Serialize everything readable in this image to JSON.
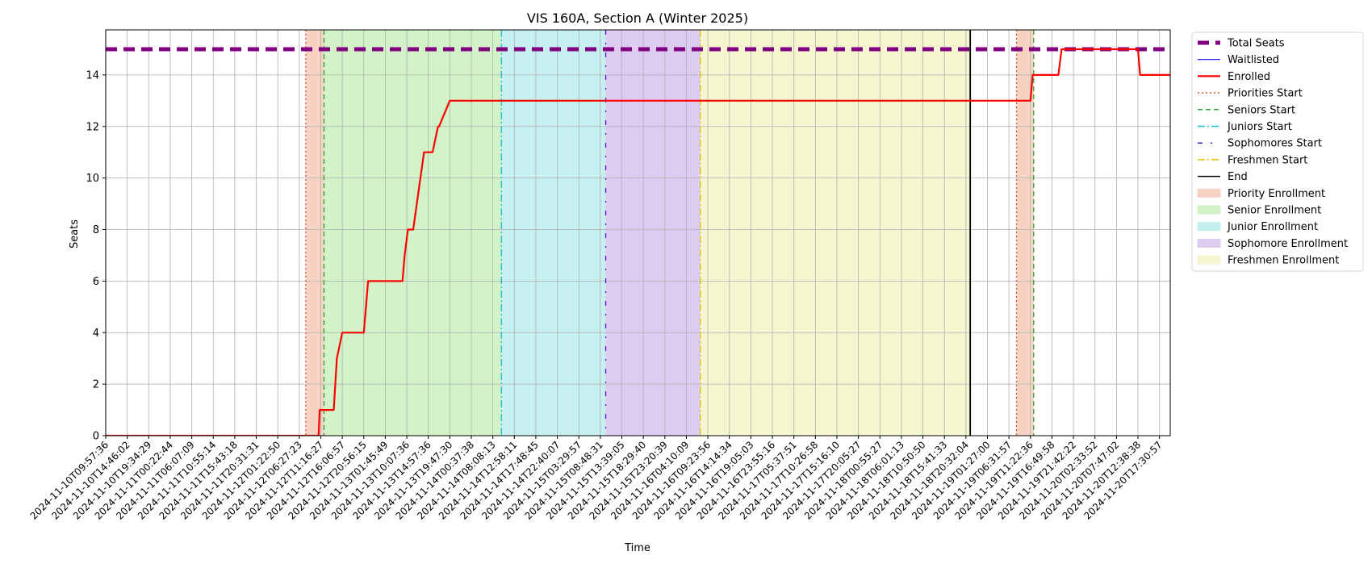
{
  "chart_data": {
    "type": "line",
    "title": "VIS 160A, Section A (Winter 2025)",
    "xlabel": "Time",
    "ylabel": "Seats",
    "ylim": [
      0,
      15.75
    ],
    "yticks": [
      0,
      2,
      4,
      6,
      8,
      10,
      12,
      14
    ],
    "grid": true,
    "legend_placement": "outside-right",
    "x_range_index": [
      0,
      49.5
    ],
    "x_tick_labels": [
      "2024-11-10T09:57:36",
      "2024-11-10T14:46:02",
      "2024-11-10T19:34:29",
      "2024-11-11T00:22:44",
      "2024-11-11T06:07:09",
      "2024-11-11T10:55:14",
      "2024-11-11T15:43:18",
      "2024-11-11T20:31:31",
      "2024-11-12T01:22:50",
      "2024-11-12T06:27:23",
      "2024-11-12T11:16:27",
      "2024-11-12T16:06:57",
      "2024-11-12T20:56:15",
      "2024-11-13T01:45:49",
      "2024-11-13T10:07:36",
      "2024-11-13T14:57:36",
      "2024-11-13T19:47:30",
      "2024-11-14T00:37:38",
      "2024-11-14T08:08:13",
      "2024-11-14T12:58:11",
      "2024-11-14T17:48:45",
      "2024-11-14T22:40:07",
      "2024-11-15T03:29:57",
      "2024-11-15T08:48:31",
      "2024-11-15T13:39:05",
      "2024-11-15T18:29:40",
      "2024-11-15T23:20:39",
      "2024-11-16T04:10:09",
      "2024-11-16T09:23:56",
      "2024-11-16T14:14:34",
      "2024-11-16T19:05:03",
      "2024-11-16T23:55:16",
      "2024-11-17T05:37:51",
      "2024-11-17T10:26:58",
      "2024-11-17T15:16:10",
      "2024-11-17T20:05:27",
      "2024-11-18T00:55:27",
      "2024-11-18T06:01:13",
      "2024-11-18T10:50:50",
      "2024-11-18T15:41:33",
      "2024-11-18T20:32:04",
      "2024-11-19T01:27:00",
      "2024-11-19T06:31:57",
      "2024-11-19T11:22:36",
      "2024-11-19T16:49:58",
      "2024-11-19T21:42:22",
      "2024-11-20T02:33:52",
      "2024-11-20T07:47:02",
      "2024-11-20T12:38:38",
      "2024-11-20T17:30:57"
    ],
    "series": [
      {
        "name": "Total Seats",
        "color": "#800080",
        "style": "dashed-thick",
        "x": [
          0,
          49.5
        ],
        "y": [
          15,
          15
        ]
      },
      {
        "name": "Waitlisted",
        "color": "#0000ff",
        "style": "solid-thin",
        "x": [],
        "y": []
      },
      {
        "name": "Enrolled",
        "color": "#ff0000",
        "style": "solid",
        "x": [
          0,
          9.9,
          9.95,
          10.6,
          10.75,
          11.0,
          12.0,
          12.2,
          13.8,
          13.9,
          14.05,
          14.3,
          14.8,
          15.2,
          15.45,
          15.5,
          16.0,
          16.1,
          43.0,
          43.1,
          44.3,
          44.45,
          47.3,
          47.45,
          48.0,
          48.1,
          49.5
        ],
        "y": [
          0,
          0,
          1,
          1,
          3,
          4,
          4,
          6,
          6,
          7,
          8,
          8,
          11,
          11,
          12,
          12,
          13,
          13,
          13,
          14,
          14,
          15,
          15,
          15,
          15,
          14,
          14
        ]
      }
    ],
    "vertical_lines": [
      {
        "name": "Priorities Start",
        "x": 9.3,
        "color": "#d9542f",
        "style": "dotted"
      },
      {
        "name": "Seniors Start",
        "x": 10.15,
        "color": "#2ca02c",
        "style": "dashed"
      },
      {
        "name": "Juniors Start",
        "x": 18.4,
        "color": "#17becf",
        "style": "dashdot"
      },
      {
        "name": "Sophomores Start",
        "x": 23.25,
        "color": "#5a12c9",
        "style": "loosely-dashdot"
      },
      {
        "name": "Freshmen Start",
        "x": 27.65,
        "color": "#e5c100",
        "style": "dashdot"
      },
      {
        "name": "End",
        "x": 40.2,
        "color": "#000000",
        "style": "solid"
      },
      {
        "name": "Priorities Start",
        "x": 42.35,
        "color": "#d9542f",
        "style": "dotted"
      },
      {
        "name": "Seniors Start",
        "x": 43.15,
        "color": "#2ca02c",
        "style": "dashed"
      }
    ],
    "shaded_regions": [
      {
        "name": "Priority Enrollment",
        "x0": 9.3,
        "x1": 10.15,
        "color": "#f6d2c3"
      },
      {
        "name": "Senior Enrollment",
        "x0": 10.15,
        "x1": 18.4,
        "color": "#d2f2c8"
      },
      {
        "name": "Junior Enrollment",
        "x0": 18.4,
        "x1": 23.25,
        "color": "#c6eff0"
      },
      {
        "name": "Sophomore Enrollment",
        "x0": 23.25,
        "x1": 27.65,
        "color": "#dcccf1"
      },
      {
        "name": "Freshmen Enrollment",
        "x0": 27.65,
        "x1": 40.2,
        "color": "#f5f6d0"
      },
      {
        "name": "Priority Enrollment",
        "x0": 42.35,
        "x1": 43.15,
        "color": "#f6d2c3"
      }
    ],
    "legend": [
      {
        "label": "Total Seats",
        "kind": "line",
        "color": "#800080",
        "style": "dashed-thick"
      },
      {
        "label": "Waitlisted",
        "kind": "line",
        "color": "#0000ff",
        "style": "solid-thin"
      },
      {
        "label": "Enrolled",
        "kind": "line",
        "color": "#ff0000",
        "style": "solid"
      },
      {
        "label": "Priorities Start",
        "kind": "line",
        "color": "#d9542f",
        "style": "dotted"
      },
      {
        "label": "Seniors Start",
        "kind": "line",
        "color": "#2ca02c",
        "style": "dashed"
      },
      {
        "label": "Juniors Start",
        "kind": "line",
        "color": "#17becf",
        "style": "dashdot"
      },
      {
        "label": "Sophomores Start",
        "kind": "line",
        "color": "#5a12c9",
        "style": "loosely-dashdot"
      },
      {
        "label": "Freshmen Start",
        "kind": "line",
        "color": "#e5c100",
        "style": "dashdot"
      },
      {
        "label": "End",
        "kind": "line",
        "color": "#000000",
        "style": "solid"
      },
      {
        "label": "Priority Enrollment",
        "kind": "patch",
        "color": "#f6d2c3"
      },
      {
        "label": "Senior Enrollment",
        "kind": "patch",
        "color": "#d2f2c8"
      },
      {
        "label": "Junior Enrollment",
        "kind": "patch",
        "color": "#c6eff0"
      },
      {
        "label": "Sophomore Enrollment",
        "kind": "patch",
        "color": "#dcccf1"
      },
      {
        "label": "Freshmen Enrollment",
        "kind": "patch",
        "color": "#f5f6d0"
      }
    ]
  }
}
